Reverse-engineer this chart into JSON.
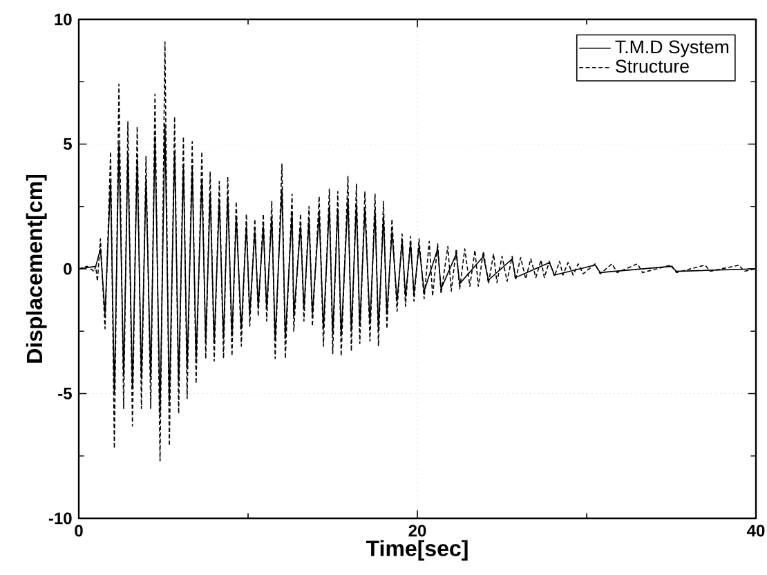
{
  "chart_data": {
    "type": "line",
    "xlabel": "Time[sec]",
    "ylabel": "Displacement[cm]",
    "xlim": [
      0,
      40
    ],
    "ylim": [
      -10,
      10
    ],
    "xticks": [
      0,
      20,
      40
    ],
    "yticks": [
      -10,
      -5,
      0,
      5,
      10
    ],
    "grid": true,
    "legend": "top right",
    "marker": "none",
    "series": [
      {
        "name": "T.M.D System",
        "color": "#000000",
        "line_style": "solid",
        "x": [
          0,
          1.0,
          1.28,
          1.55,
          1.88,
          2.1,
          2.37,
          2.65,
          2.9,
          3.17,
          3.45,
          3.7,
          3.97,
          4.25,
          4.5,
          4.8,
          5.09,
          5.35,
          5.66,
          5.9,
          6.18,
          6.4,
          6.7,
          6.93,
          7.27,
          7.5,
          7.76,
          8.0,
          8.3,
          8.55,
          8.8,
          9.05,
          9.3,
          9.6,
          9.9,
          10.1,
          10.4,
          10.6,
          10.9,
          11.1,
          11.4,
          11.6,
          12.0,
          12.2,
          12.6,
          12.7,
          13.1,
          13.3,
          13.6,
          13.8,
          14.2,
          14.45,
          14.8,
          15.0,
          15.3,
          15.5,
          15.9,
          16.1,
          16.4,
          16.6,
          16.9,
          17.2,
          17.5,
          17.7,
          18.0,
          18.2,
          18.5,
          18.8,
          19.1,
          19.3,
          19.6,
          19.8,
          20.1,
          20.4,
          21.2,
          21.4,
          22.3,
          22.5,
          23.9,
          24.2,
          25.6,
          25.8,
          27.8,
          28.1,
          30.5,
          30.8,
          35,
          35.3,
          40
        ],
        "values": [
          0,
          0.1,
          0.8,
          -1.8,
          3.5,
          -5.0,
          5.0,
          -4.3,
          4.6,
          -4.8,
          4.4,
          -4.4,
          3.6,
          -4.4,
          5.3,
          -5.8,
          5.8,
          -5.3,
          4.7,
          -4.5,
          4.1,
          -4.0,
          4.0,
          -3.6,
          3.6,
          -2.9,
          3.0,
          -2.9,
          2.7,
          -2.8,
          2.9,
          -2.7,
          2.1,
          -2.4,
          1.7,
          -1.8,
          1.5,
          -1.5,
          1.7,
          -1.6,
          2.1,
          -2.8,
          3.2,
          -2.8,
          2.3,
          -1.9,
          1.7,
          -1.6,
          1.9,
          -1.8,
          2.2,
          -2.4,
          2.5,
          -2.6,
          2.4,
          -2.7,
          2.8,
          -2.5,
          2.6,
          -2.3,
          2.4,
          -2.2,
          2.3,
          -2.4,
          2.1,
          -1.8,
          1.5,
          -1.3,
          1.1,
          -1.1,
          1.0,
          -1.0,
          0.9,
          -0.9,
          0.8,
          -0.8,
          0.6,
          -0.6,
          0.5,
          -0.45,
          0.4,
          -0.35,
          0.25,
          -0.25,
          0.15,
          -0.15,
          0.1,
          -0.1,
          0
        ]
      },
      {
        "name": "Structure",
        "color": "#000000",
        "line_style": "dashed",
        "x": [
          0,
          0.5,
          0.9,
          1.0,
          1.1,
          1.28,
          1.55,
          1.88,
          2.1,
          2.37,
          2.65,
          2.9,
          3.17,
          3.45,
          3.7,
          3.97,
          4.25,
          4.5,
          4.8,
          5.09,
          5.35,
          5.66,
          5.9,
          6.18,
          6.4,
          6.7,
          6.93,
          7.27,
          7.5,
          7.76,
          8.0,
          8.3,
          8.55,
          8.8,
          9.05,
          9.3,
          9.6,
          9.9,
          10.1,
          10.4,
          10.6,
          10.9,
          11.1,
          11.4,
          11.6,
          12.0,
          12.2,
          12.6,
          12.7,
          13.1,
          13.3,
          13.6,
          13.8,
          14.2,
          14.45,
          14.8,
          15.0,
          15.3,
          15.5,
          15.9,
          16.1,
          16.4,
          16.6,
          16.9,
          17.2,
          17.5,
          17.7,
          18.0,
          18.2,
          18.5,
          18.8,
          19.1,
          19.3,
          19.6,
          19.8,
          20.1,
          20.4,
          20.7,
          20.9,
          21.2,
          21.4,
          21.8,
          22.0,
          22.3,
          22.5,
          22.8,
          23.1,
          23.4,
          23.6,
          23.9,
          24.2,
          24.5,
          24.7,
          25.0,
          25.3,
          25.6,
          25.8,
          26.1,
          26.4,
          26.7,
          27.0,
          27.3,
          27.5,
          27.8,
          28.1,
          28.4,
          28.6,
          28.9,
          29.2,
          29.5,
          29.8,
          30.5,
          30.8,
          31.5,
          31.8,
          33,
          33.3,
          35,
          35.3,
          37,
          37.3,
          39,
          39.3,
          40
        ],
        "values": [
          0,
          0.1,
          -0.1,
          0.1,
          -0.5,
          1.2,
          -2.4,
          4.7,
          -7.2,
          7.4,
          -5.6,
          5.9,
          -6.3,
          5.7,
          -5.6,
          4.5,
          -5.6,
          7.0,
          -7.7,
          9.1,
          -7.1,
          6.1,
          -5.8,
          5.3,
          -5.2,
          5.1,
          -4.6,
          4.7,
          -3.6,
          3.9,
          -3.7,
          3.5,
          -3.6,
          3.7,
          -3.5,
          2.7,
          -3.1,
          2.2,
          -2.3,
          2.0,
          -1.9,
          2.2,
          -2.1,
          2.7,
          -3.6,
          4.2,
          -3.6,
          3.0,
          -2.5,
          2.2,
          -2.1,
          2.5,
          -2.3,
          2.9,
          -3.1,
          3.2,
          -3.4,
          3.1,
          -3.5,
          3.7,
          -3.3,
          3.4,
          -3.0,
          3.1,
          -2.9,
          3.0,
          -3.1,
          2.7,
          -2.4,
          2.0,
          -1.7,
          1.4,
          -1.5,
          1.3,
          -1.3,
          1.2,
          -1.2,
          1.1,
          -1.1,
          1.0,
          -1.0,
          0.9,
          -0.9,
          0.8,
          -0.8,
          0.8,
          -0.7,
          0.75,
          -0.7,
          0.7,
          -0.6,
          0.6,
          -0.55,
          0.5,
          -0.5,
          0.5,
          -0.45,
          0.45,
          -0.4,
          0.4,
          -0.35,
          0.35,
          -0.35,
          0.3,
          -0.3,
          0.3,
          -0.25,
          0.25,
          -0.25,
          0.2,
          -0.2,
          0.2,
          -0.2,
          0.2,
          -0.15,
          0.2,
          -0.15,
          0.15,
          -0.15,
          0.15,
          -0.1,
          0.15,
          -0.1,
          0
        ]
      }
    ]
  }
}
